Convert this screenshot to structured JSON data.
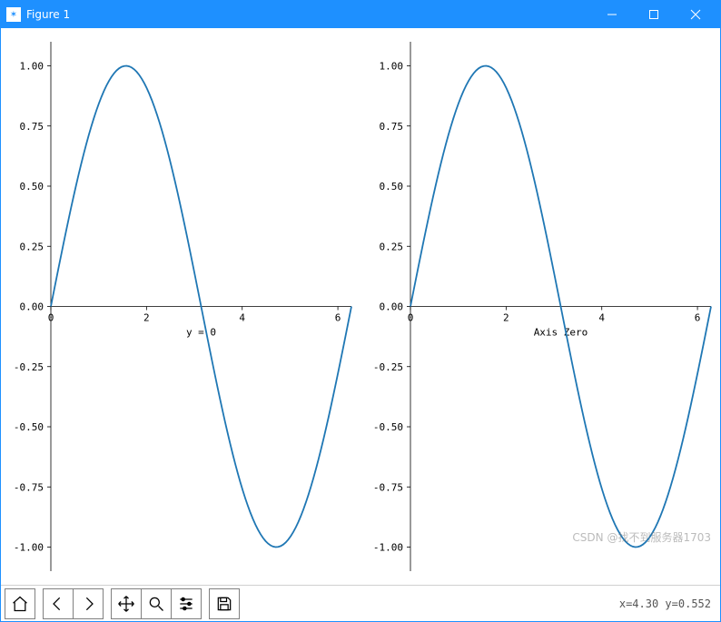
{
  "window": {
    "title": "Figure 1",
    "titlebar_color": "#1e90ff",
    "title_text_color": "#ffffff"
  },
  "figure": {
    "background_color": "#ffffff",
    "subplots": [
      {
        "type": "line",
        "xlabel": "y = 0",
        "xlim": [
          0,
          6.2832
        ],
        "ylim": [
          -1.1,
          1.1
        ],
        "xticks": [
          0,
          2,
          4,
          6
        ],
        "yticks": [
          -1.0,
          -0.75,
          -0.5,
          -0.25,
          0.0,
          0.25,
          0.5,
          0.75,
          1.0
        ],
        "ytick_labels": [
          "-1.00",
          "-0.75",
          "-0.50",
          "-0.25",
          "0.00",
          "0.25",
          "0.50",
          "0.75",
          "1.00"
        ],
        "line_color": "#1f77b4",
        "line_width": 1.8,
        "spine_color": "#000000",
        "spine_width": 0.8,
        "tick_fontsize": 11,
        "label_fontsize": 11,
        "xaxis_at_y": 0,
        "series": {
          "function": "sin",
          "x_start": 0,
          "x_end": 6.2832,
          "n_points": 120
        }
      },
      {
        "type": "line",
        "xlabel": "Axis Zero",
        "xlim": [
          0,
          6.2832
        ],
        "ylim": [
          -1.1,
          1.1
        ],
        "xticks": [
          0,
          2,
          4,
          6
        ],
        "yticks": [
          -1.0,
          -0.75,
          -0.5,
          -0.25,
          0.0,
          0.25,
          0.5,
          0.75,
          1.0
        ],
        "ytick_labels": [
          "-1.00",
          "-0.75",
          "-0.50",
          "-0.25",
          "0.00",
          "0.25",
          "0.50",
          "0.75",
          "1.00"
        ],
        "line_color": "#1f77b4",
        "line_width": 1.8,
        "spine_color": "#000000",
        "spine_width": 0.8,
        "tick_fontsize": 11,
        "label_fontsize": 11,
        "xaxis_at_y": 0,
        "series": {
          "function": "sin",
          "x_start": 0,
          "x_end": 6.2832,
          "n_points": 120
        }
      }
    ]
  },
  "toolbar": {
    "coord_readout": "x=4.30 y=0.552",
    "buttons": {
      "home": "Home",
      "back": "Back",
      "forward": "Forward",
      "pan": "Pan",
      "zoom": "Zoom",
      "configure": "Configure subplots",
      "save": "Save"
    }
  },
  "watermark": "CSDN @找不到服务器1703"
}
